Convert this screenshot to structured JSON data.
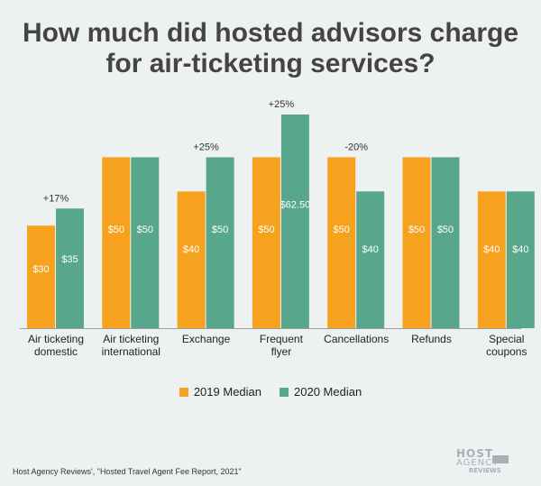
{
  "title_line1": "How much did hosted advisors charge",
  "title_line2": "for air-ticketing services?",
  "source": "Host Agency Reviews', \"Hosted Travel Agent Fee Report, 2021\"",
  "logo": {
    "line1": "HOST",
    "line2": "AGENCY",
    "line3": "REVIEWS"
  },
  "colors": {
    "s2019": "#f6a21f",
    "s2020": "#58a68c"
  },
  "chart_data": {
    "type": "bar",
    "title": "How much did hosted advisors charge for air-ticketing services?",
    "categories": [
      [
        "Air ticketing",
        "domestic"
      ],
      [
        "Air ticketing",
        "international"
      ],
      [
        "Exchange"
      ],
      [
        "Frequent",
        "flyer"
      ],
      [
        "Cancellations"
      ],
      [
        "Refunds"
      ],
      [
        "Special",
        "coupons"
      ]
    ],
    "series": [
      {
        "name": "2019 Median",
        "values": [
          30,
          50,
          40,
          50,
          50,
          50,
          40
        ],
        "labels": [
          "$30",
          "$50",
          "$40",
          "$50",
          "$50",
          "$50",
          "$40"
        ]
      },
      {
        "name": "2020 Median",
        "values": [
          35,
          50,
          50,
          62.5,
          40,
          50,
          40
        ],
        "labels": [
          "$35",
          "$50",
          "$50",
          "$62.50",
          "$40",
          "$50",
          "$40"
        ]
      }
    ],
    "changes": [
      "+17%",
      "",
      "+25%",
      "+25%",
      "-20%",
      "",
      ""
    ],
    "ylim": [
      0,
      62.5
    ],
    "legend_position": "bottom",
    "grid": false
  }
}
